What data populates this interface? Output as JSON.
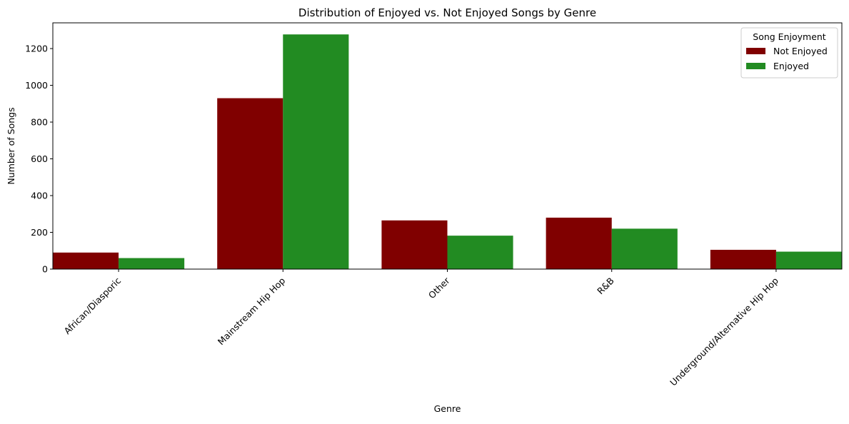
{
  "chart_data": {
    "type": "bar",
    "title": "Distribution of Enjoyed vs. Not Enjoyed Songs by Genre",
    "xlabel": "Genre",
    "ylabel": "Number of Songs",
    "categories": [
      "African/Diasporic",
      "Mainstream Hip Hop",
      "Other",
      "R&B",
      "Underground/Alternative Hip Hop"
    ],
    "series": [
      {
        "name": "Not Enjoyed",
        "color": "#800000",
        "values": [
          90,
          930,
          265,
          280,
          105
        ]
      },
      {
        "name": "Enjoyed",
        "color": "#228b22",
        "values": [
          60,
          1277,
          182,
          220,
          95
        ]
      }
    ],
    "ylim": [
      0,
      1340
    ],
    "yticks": [
      0,
      200,
      400,
      600,
      800,
      1000,
      1200
    ],
    "grid": false,
    "legend": {
      "title": "Song Enjoyment",
      "position": "top-right"
    }
  }
}
